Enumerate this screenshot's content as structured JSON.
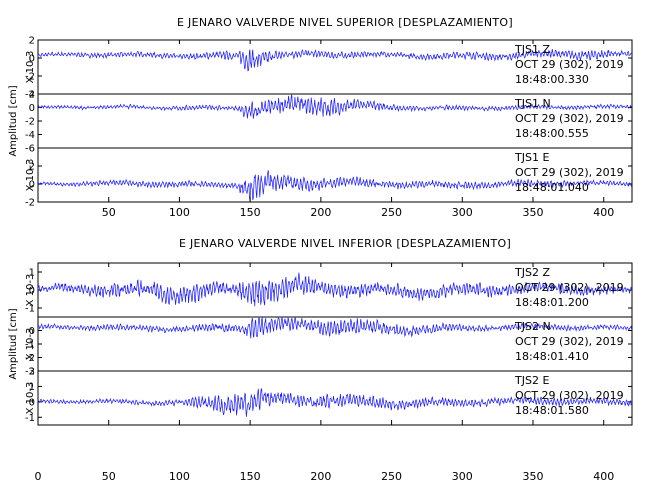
{
  "chart_data": [
    {
      "type": "line",
      "title": "E JENARO VALVERDE NIVEL SUPERIOR [DESPLAZAMIENTO]",
      "ylabel": "Amplitud [cm]",
      "x_ticks": [
        50,
        100,
        150,
        200,
        250,
        300,
        350,
        400
      ],
      "xlim": [
        0,
        420
      ],
      "line_color": "#1a1aff",
      "traces": [
        {
          "station_label": "TJS1 Z",
          "date": "OCT 29 (302), 2019",
          "time": "18:48:00.330",
          "scale_label": "X 10-3",
          "ylim": [
            -4,
            2
          ],
          "y_ticks": [
            2,
            0,
            -2,
            -4
          ],
          "envelope": [
            [
              0,
              0.4
            ],
            [
              100,
              0.5
            ],
            [
              140,
              0.8
            ],
            [
              148,
              2.2
            ],
            [
              160,
              1.5
            ],
            [
              170,
              0.8
            ],
            [
              250,
              0.5
            ],
            [
              380,
              0.8
            ],
            [
              400,
              1.0
            ],
            [
              420,
              0.5
            ]
          ],
          "bias": 0.3
        },
        {
          "station_label": "TJS1 N",
          "date": "OCT 29 (302), 2019",
          "time": "18:48:00.555",
          "scale_label": "",
          "ylim": [
            -6,
            2
          ],
          "y_ticks": [
            2,
            0,
            -2,
            -4,
            -6
          ],
          "envelope": [
            [
              0,
              0.4
            ],
            [
              140,
              0.6
            ],
            [
              150,
              2.5
            ],
            [
              165,
              1.8
            ],
            [
              200,
              2.5
            ],
            [
              230,
              1.2
            ],
            [
              260,
              0.6
            ],
            [
              420,
              0.5
            ]
          ],
          "bias": 0.0
        },
        {
          "station_label": "TJS1 E",
          "date": "OCT 29 (302), 2019",
          "time": "18:48:01.040",
          "scale_label": "X 10-3",
          "ylim": [
            -2,
            4
          ],
          "y_ticks": [
            2,
            0,
            -2
          ],
          "envelope": [
            [
              0,
              0.3
            ],
            [
              60,
              0.6
            ],
            [
              140,
              0.5
            ],
            [
              150,
              2.8
            ],
            [
              170,
              1.5
            ],
            [
              200,
              1.0
            ],
            [
              260,
              0.7
            ],
            [
              360,
              0.6
            ],
            [
              420,
              0.4
            ]
          ],
          "bias": 0.0
        }
      ]
    },
    {
      "type": "line",
      "title": "E JENARO VALVERDE NIVEL INFERIOR [DESPLAZAMIENTO]",
      "ylabel": "Amplitud [cm]",
      "x_ticks": [
        0,
        50,
        100,
        150,
        200,
        250,
        300,
        350,
        400
      ],
      "xlim": [
        0,
        420
      ],
      "line_color": "#1a1aff",
      "traces": [
        {
          "station_label": "TJS2 Z",
          "date": "OCT 29 (302), 2019",
          "time": "18:48:01.200",
          "scale_label": "X 10-3",
          "ylim": [
            -1.5,
            1.5
          ],
          "y_ticks": [
            1,
            0,
            -1
          ],
          "envelope": [
            [
              0,
              0.3
            ],
            [
              60,
              0.7
            ],
            [
              100,
              0.9
            ],
            [
              140,
              0.6
            ],
            [
              150,
              1.4
            ],
            [
              165,
              1.2
            ],
            [
              200,
              0.7
            ],
            [
              300,
              0.6
            ],
            [
              420,
              0.4
            ]
          ],
          "bias": 0.0
        },
        {
          "station_label": "TJS2 N",
          "date": "OCT 29 (302), 2019",
          "time": "18:48:01.410",
          "scale_label": "X 10-3",
          "ylim": [
            -3,
            1
          ],
          "y_ticks": [
            0,
            -1,
            -2,
            -3
          ],
          "envelope": [
            [
              0,
              0.3
            ],
            [
              100,
              0.4
            ],
            [
              145,
              0.6
            ],
            [
              155,
              1.8
            ],
            [
              170,
              0.9
            ],
            [
              220,
              1.0
            ],
            [
              300,
              0.4
            ],
            [
              420,
              0.3
            ]
          ],
          "bias": 0.2
        },
        {
          "station_label": "TJS2 E",
          "date": "OCT 29 (302), 2019",
          "time": "18:48:01.580",
          "scale_label": "X 10-3",
          "ylim": [
            -1.5,
            2
          ],
          "y_ticks": [
            2,
            1,
            0,
            -1
          ],
          "envelope": [
            [
              0,
              0.2
            ],
            [
              100,
              0.3
            ],
            [
              148,
              1.5
            ],
            [
              165,
              0.8
            ],
            [
              220,
              0.7
            ],
            [
              300,
              0.4
            ],
            [
              400,
              0.4
            ],
            [
              420,
              0.3
            ]
          ],
          "bias": 0.0
        }
      ]
    }
  ]
}
